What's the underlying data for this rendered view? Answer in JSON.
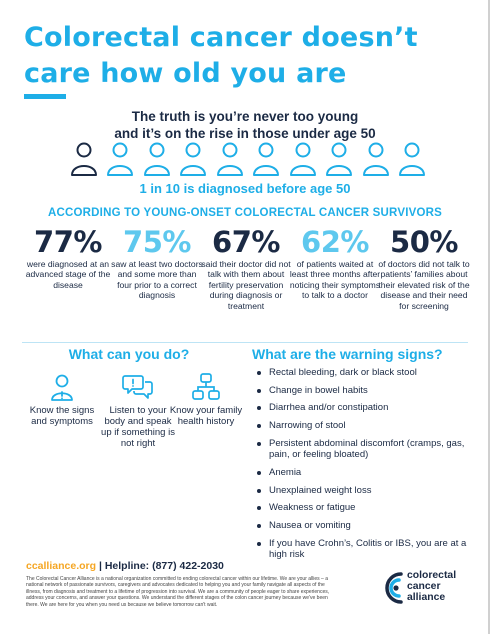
{
  "title": {
    "line1": "Colorectal cancer doesn’t",
    "line2": "care how old you are"
  },
  "truth": {
    "line1": "The truth is you’re never too young",
    "line2": "and it’s on the rise in those under age 50"
  },
  "people": {
    "total": 10,
    "highlighted": 1,
    "icon": "person-icon",
    "highlight_color": "#1b2a44",
    "other_color": "#1eaee7"
  },
  "one_in_ten": "1 in 10 is diagnosed before age 50",
  "survivors_heading": "ACCORDING TO YOUNG-ONSET COLORECTAL CANCER SURVIVORS",
  "stats": [
    {
      "value": "77%",
      "color": "dark",
      "description": "were diagnosed at an advanced stage of the disease"
    },
    {
      "value": "75%",
      "color": "light",
      "description": "saw at least two doctors and some more than four prior to a correct diagnosis"
    },
    {
      "value": "67%",
      "color": "dark",
      "description": "said their doctor did not talk with them about fertility preservation during diagnosis or treatment"
    },
    {
      "value": "62%",
      "color": "light",
      "description": "of patients waited at least three months after noticing their symptoms to talk to a doctor"
    },
    {
      "value": "50%",
      "color": "dark",
      "description": "of doctors did not talk to patients’ families about their elevated risk of the disease and their need for screening"
    }
  ],
  "what_can_you_do": {
    "heading": "What can you do?",
    "items": [
      {
        "icon": "person-alert-icon",
        "text": "Know the signs and symptoms"
      },
      {
        "icon": "chat-bubbles-icon",
        "text": "Listen to your body and speak up if something is not right"
      },
      {
        "icon": "family-tree-icon",
        "text": "Know your family health history"
      }
    ]
  },
  "warning_signs": {
    "heading": "What are the warning signs?",
    "items": [
      "Rectal bleeding, dark or black stool",
      "Change in bowel habits",
      "Diarrhea and/or constipation",
      "Narrowing of stool",
      "Persistent abdominal discomfort (cramps, gas, pain, or feeling bloated)",
      "Anemia",
      "Unexplained weight loss",
      "Weakness or fatigue",
      "Nausea or vomiting",
      "If you have Crohn’s, Colitis or IBS, you are at a high risk"
    ]
  },
  "footer": {
    "website": "ccalliance.org",
    "separator": " | ",
    "helpline": "Helpline: (877) 422-2030",
    "about": "The Colorectal Cancer Alliance is a national organization committed to ending colorectal cancer within our lifetime. We are your allies – a national network of passionate survivors, caregivers and advocates dedicated to helping you and your family navigate all aspects of the illness, from diagnosis and treatment to a lifetime of progression into survival. We are a community of people eager to share experiences, address your concerns, and answer your questions. We understand the different stages of the colon cancer journey because we've been there. We are here for you when you need us because we believe tomorrow can't wait."
  },
  "logo": {
    "line1": "colorectal",
    "line2": "cancer",
    "line3": "alliance",
    "icon": "alliance-logo-icon"
  },
  "colors": {
    "accent": "#1eaee7",
    "accent_light": "#5ec8ee",
    "navy": "#1b2a44",
    "orange": "#f5a623"
  }
}
